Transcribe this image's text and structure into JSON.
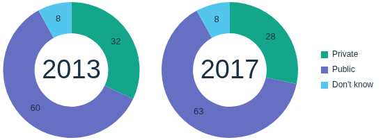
{
  "chart_data": [
    {
      "type": "doughnut",
      "title": "2013",
      "categories": [
        "Private",
        "Public",
        "Don't know"
      ],
      "values": [
        32,
        60,
        8
      ],
      "colors": [
        "#13a68b",
        "#6670c2",
        "#52c6ec"
      ],
      "data_labels": true
    },
    {
      "type": "doughnut",
      "title": "2017",
      "categories": [
        "Private",
        "Public",
        "Don't know"
      ],
      "values": [
        28,
        63,
        8
      ],
      "colors": [
        "#13a68b",
        "#6670c2",
        "#52c6ec"
      ],
      "data_labels": true,
      "legend": "right"
    }
  ]
}
